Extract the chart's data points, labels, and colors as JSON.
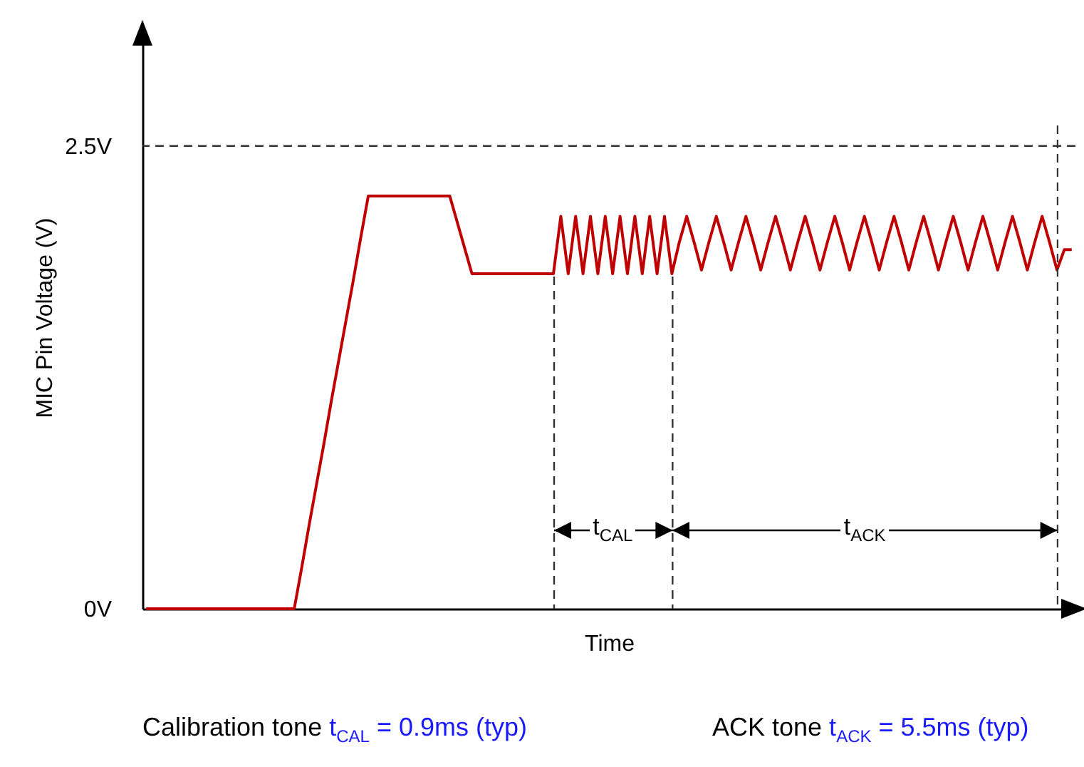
{
  "chart_data": {
    "type": "line",
    "xlabel": "Time",
    "ylabel": "MIC Pin Voltage (V)",
    "categories": [
      null,
      null,
      null,
      null,
      null,
      null,
      null,
      null,
      null,
      null,
      null,
      null,
      null,
      null,
      null,
      null,
      null,
      null,
      null,
      null,
      null,
      null,
      null,
      null,
      null,
      null,
      null,
      null,
      null,
      null,
      null,
      null,
      null,
      null,
      null,
      null,
      null,
      null,
      null,
      null,
      null,
      null,
      null,
      null,
      null,
      null,
      null,
      null,
      null,
      null,
      null,
      null,
      null,
      null,
      null,
      null,
      null,
      null,
      null,
      null,
      null,
      null,
      null,
      null,
      null,
      null,
      null,
      null,
      null,
      null,
      null,
      null,
      null,
      null,
      null,
      null,
      null,
      null,
      null,
      null,
      null,
      null,
      null,
      null,
      null,
      null,
      null,
      null,
      null,
      null,
      null,
      null,
      null,
      null,
      null,
      null,
      null,
      null,
      null,
      null,
      null,
      null,
      null,
      null,
      null,
      null,
      null,
      null,
      null,
      null,
      null,
      null,
      null,
      null,
      null,
      null,
      null,
      null,
      null,
      null,
      null,
      null,
      null,
      null,
      null,
      null
    ],
    "ylim": [
      0,
      3.15
    ],
    "yticks": [
      {
        "value": 0,
        "label": "0V"
      },
      {
        "value": 2.5,
        "label": "2.5V"
      }
    ],
    "tick_labels": "y",
    "grid": false,
    "series": [
      {
        "color": "#c00000",
        "values": [
          0,
          0,
          0,
          0,
          0,
          0,
          0,
          0,
          0,
          0,
          0,
          0,
          0,
          0,
          0,
          0,
          0,
          0,
          0,
          0,
          0,
          0.22,
          0.45,
          0.67,
          0.89,
          1.12,
          1.34,
          1.56,
          1.78,
          2.01,
          2.23,
          2.23,
          2.23,
          2.23,
          2.23,
          2.23,
          2.23,
          2.23,
          2.23,
          2.23,
          2.23,
          2.23,
          2.09,
          1.95,
          1.81,
          1.81,
          1.81,
          1.81,
          1.81,
          1.81,
          1.81,
          1.81,
          1.81,
          1.81,
          1.81,
          1.81,
          2.12,
          1.81,
          2.12,
          1.81,
          2.12,
          1.81,
          2.12,
          1.81,
          2.12,
          1.81,
          2.12,
          1.81,
          2.12,
          1.81,
          2.12,
          1.81,
          1.98,
          2.12,
          1.98,
          1.83,
          1.98,
          2.12,
          1.98,
          1.83,
          1.98,
          2.12,
          1.98,
          1.83,
          1.98,
          2.12,
          1.98,
          1.83,
          1.98,
          2.12,
          1.98,
          1.83,
          1.98,
          2.12,
          1.98,
          1.83,
          1.98,
          2.12,
          1.98,
          1.83,
          1.98,
          2.12,
          1.98,
          1.83,
          1.98,
          2.12,
          1.98,
          1.83,
          1.98,
          2.12,
          1.98,
          1.83,
          1.98,
          2.12,
          1.98,
          1.83,
          1.98,
          2.12,
          1.98,
          1.83,
          1.98,
          2.12,
          1.98,
          1.83,
          1.94,
          1.94
        ]
      }
    ],
    "ref_lines": [
      {
        "axis": "y",
        "value": 2.5,
        "line_style": "dashed",
        "color": "#333333"
      }
    ],
    "annotations": [
      "t$_{CAL}$",
      "t$_{ACK}$",
      "Calibration tone",
      "t$_{CAL}$ = 0.9ms (typ)",
      "ACK tone",
      "t$_{ACK}$ = 5.5ms (typ)"
    ]
  }
}
